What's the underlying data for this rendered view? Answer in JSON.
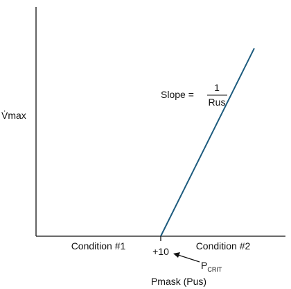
{
  "chart_data": {
    "type": "line",
    "ylabel": "V̇max",
    "xlabel": "Pmask (Pus)",
    "x_tick_label": "+10",
    "x_tick_value": 10,
    "xlim": [
      -10,
      30
    ],
    "ylim": [
      0,
      1
    ],
    "regions": [
      {
        "label": "Condition #1",
        "x_center": 0
      },
      {
        "label": "Condition #2",
        "x_center": 20
      }
    ],
    "series": [
      {
        "x": [
          10,
          10,
          25
        ],
        "y": [
          0,
          0,
          0.82
        ]
      }
    ],
    "slope_annotation": {
      "prefix": "Slope =",
      "numerator": "1",
      "denominator": "Rus"
    },
    "pcrit_annotation": {
      "base": "P",
      "subscript": "CRIT",
      "points_to_x": 10
    },
    "colors": {
      "axis": "#111111",
      "line": "#1d5b7e"
    }
  }
}
